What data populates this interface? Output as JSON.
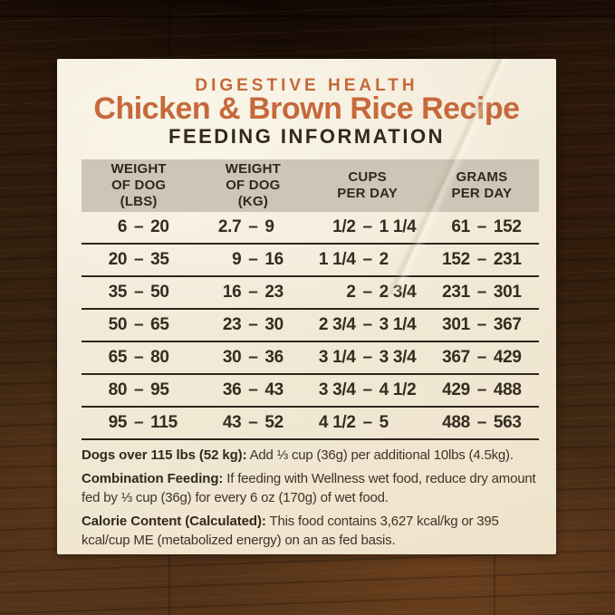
{
  "header": {
    "category": "DIGESTIVE HEALTH",
    "title": "Chicken & Brown Rice Recipe",
    "subtitle": "FEEDING INFORMATION"
  },
  "table": {
    "dash": "–",
    "columns": [
      {
        "label_lines": [
          "WEIGHT",
          "OF DOG",
          "(LBS)"
        ]
      },
      {
        "label_lines": [
          "WEIGHT",
          "OF DOG",
          "(KG)"
        ]
      },
      {
        "label_lines": [
          "CUPS",
          "PER DAY"
        ]
      },
      {
        "label_lines": [
          "GRAMS",
          "PER DAY"
        ]
      }
    ],
    "rows": [
      {
        "lbs": [
          "6",
          "20"
        ],
        "kg": [
          "2.7",
          "9"
        ],
        "cups": [
          "1/2",
          "1 1/4"
        ],
        "grams": [
          "61",
          "152"
        ]
      },
      {
        "lbs": [
          "20",
          "35"
        ],
        "kg": [
          "9",
          "16"
        ],
        "cups": [
          "1 1/4",
          "2"
        ],
        "grams": [
          "152",
          "231"
        ]
      },
      {
        "lbs": [
          "35",
          "50"
        ],
        "kg": [
          "16",
          "23"
        ],
        "cups": [
          "2",
          "2 3/4"
        ],
        "grams": [
          "231",
          "301"
        ]
      },
      {
        "lbs": [
          "50",
          "65"
        ],
        "kg": [
          "23",
          "30"
        ],
        "cups": [
          "2 3/4",
          "3 1/4"
        ],
        "grams": [
          "301",
          "367"
        ]
      },
      {
        "lbs": [
          "65",
          "80"
        ],
        "kg": [
          "30",
          "36"
        ],
        "cups": [
          "3 1/4",
          "3 3/4"
        ],
        "grams": [
          "367",
          "429"
        ]
      },
      {
        "lbs": [
          "80",
          "95"
        ],
        "kg": [
          "36",
          "43"
        ],
        "cups": [
          "3 3/4",
          "4 1/2"
        ],
        "grams": [
          "429",
          "488"
        ]
      },
      {
        "lbs": [
          "95",
          "115"
        ],
        "kg": [
          "43",
          "52"
        ],
        "cups": [
          "4 1/2",
          "5"
        ],
        "grams": [
          "488",
          "563"
        ]
      }
    ]
  },
  "notes": [
    {
      "lead": "Dogs over 115 lbs (52 kg):",
      "text": " Add ⅓ cup (36g) per additional 10lbs (4.5kg)."
    },
    {
      "lead": "Combination Feeding:",
      "text": " If feeding with Wellness wet food, reduce dry amount fed by ⅓ cup (36g) for every 6 oz (170g) of wet food."
    },
    {
      "lead": "Calorie Content (Calculated):",
      "text": " This food contains 3,627 kcal/kg or 395 kcal/cup ME (metabolized energy) on an as fed basis."
    }
  ],
  "colors": {
    "accent_orange": "#c6693a",
    "text_dark": "#33281d",
    "label_bg": "#f2ead8",
    "header_band": "#cdc5b6",
    "rule_dark": "#2f251b",
    "wood_dark": "#2a160a",
    "wood_light": "#553419"
  }
}
